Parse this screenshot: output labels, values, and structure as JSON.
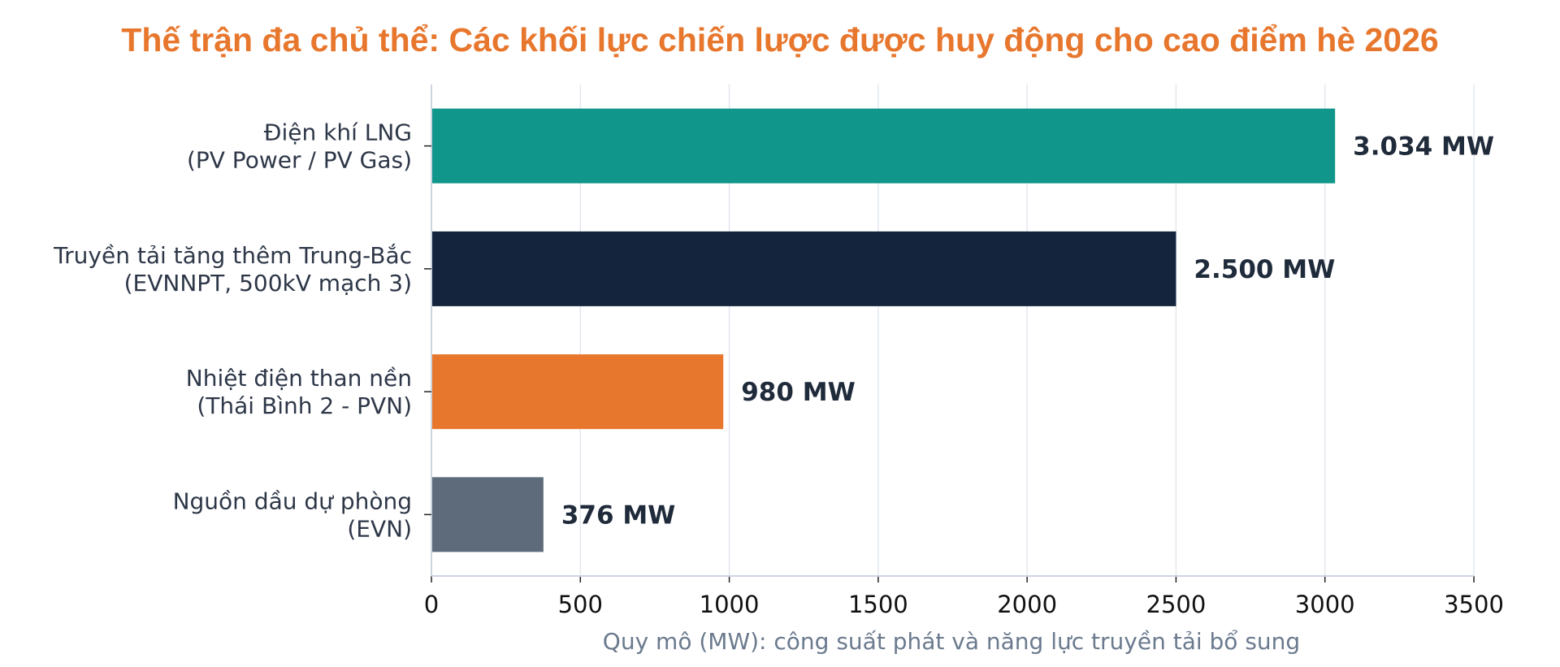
{
  "chart_data": {
    "type": "bar",
    "orientation": "horizontal",
    "title": "Thế trận đa chủ thể: Các khối lực chiến lược được huy động cho cao điểm hè 2026",
    "xlabel": "Quy mô (MW): công suất phát và năng lực truyền tải bổ sung",
    "ylabel": "",
    "xlim": [
      0,
      3500
    ],
    "xticks": [
      0,
      500,
      1000,
      1500,
      2000,
      2500,
      3000,
      3500
    ],
    "grid": "vertical",
    "categories": [
      [
        "Điện khí LNG",
        "(PV Power / PV Gas)"
      ],
      [
        "Truyền tải tăng thêm Trung-Bắc",
        "(EVNNPT, 500kV mạch 3)"
      ],
      [
        "Nhiệt điện than nền",
        "(Thái Bình 2 - PVN)"
      ],
      [
        "Nguồn dầu dự phòng",
        "(EVN)"
      ]
    ],
    "values": [
      3034,
      2500,
      980,
      376
    ],
    "data_labels": [
      "3.034 MW",
      "2.500 MW",
      "980 MW",
      "376 MW"
    ],
    "colors": [
      "#10968A",
      "#13243C",
      "#E8772E",
      "#5E6B7A"
    ]
  }
}
